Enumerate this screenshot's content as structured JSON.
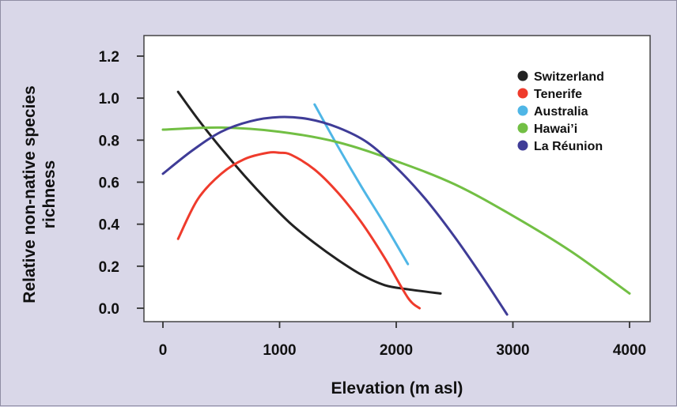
{
  "chart_data": {
    "type": "line",
    "xlabel": "Elevation (m asl)",
    "ylabel": [
      "Relative non-native species",
      "richness"
    ],
    "xlim": [
      0,
      4000
    ],
    "ylim": [
      0.0,
      1.2
    ],
    "xticks": [
      "0",
      "1000",
      "2000",
      "3000",
      "4000"
    ],
    "xtick_values": [
      0,
      1000,
      2000,
      3000,
      4000
    ],
    "yticks": [
      "0.0",
      "0.2",
      "0.4",
      "0.6",
      "0.8",
      "1.0",
      "1.2"
    ],
    "ytick_values": [
      0.0,
      0.2,
      0.4,
      0.6,
      0.8,
      1.0,
      1.2
    ],
    "grid": false,
    "legend_position": "top-right",
    "series": [
      {
        "name": "Switzerland",
        "color": "#222222",
        "x": [
          130,
          300,
          500,
          700,
          900,
          1100,
          1300,
          1500,
          1700,
          1900,
          2100,
          2380
        ],
        "y": [
          1.03,
          0.9,
          0.76,
          0.63,
          0.51,
          0.4,
          0.31,
          0.23,
          0.16,
          0.11,
          0.09,
          0.07
        ]
      },
      {
        "name": "Tenerife",
        "color": "#ef3b2c",
        "x": [
          130,
          300,
          500,
          700,
          900,
          1000,
          1100,
          1300,
          1500,
          1700,
          1900,
          2100,
          2200
        ],
        "y": [
          0.33,
          0.52,
          0.64,
          0.71,
          0.74,
          0.74,
          0.73,
          0.66,
          0.55,
          0.41,
          0.24,
          0.05,
          0.0
        ]
      },
      {
        "name": "Australia",
        "color": "#4fb6e6",
        "x": [
          1300,
          1500,
          1700,
          1900,
          2100
        ],
        "y": [
          0.97,
          0.77,
          0.58,
          0.4,
          0.21
        ]
      },
      {
        "name": "Hawai’i",
        "color": "#72bf44",
        "x": [
          0,
          500,
          1000,
          1500,
          2000,
          2500,
          3000,
          3500,
          4000
        ],
        "y": [
          0.85,
          0.86,
          0.84,
          0.79,
          0.7,
          0.59,
          0.44,
          0.27,
          0.07
        ]
      },
      {
        "name": "La Réunion",
        "color": "#3f3c97",
        "x": [
          0,
          250,
          500,
          750,
          1000,
          1250,
          1500,
          1750,
          2000,
          2250,
          2500,
          2750,
          2950
        ],
        "y": [
          0.64,
          0.75,
          0.84,
          0.89,
          0.91,
          0.9,
          0.86,
          0.79,
          0.67,
          0.52,
          0.34,
          0.14,
          -0.03
        ]
      }
    ]
  },
  "colors": {
    "background": "#d9d7e8",
    "plot_area": "#ffffff",
    "axis": "#333333"
  }
}
